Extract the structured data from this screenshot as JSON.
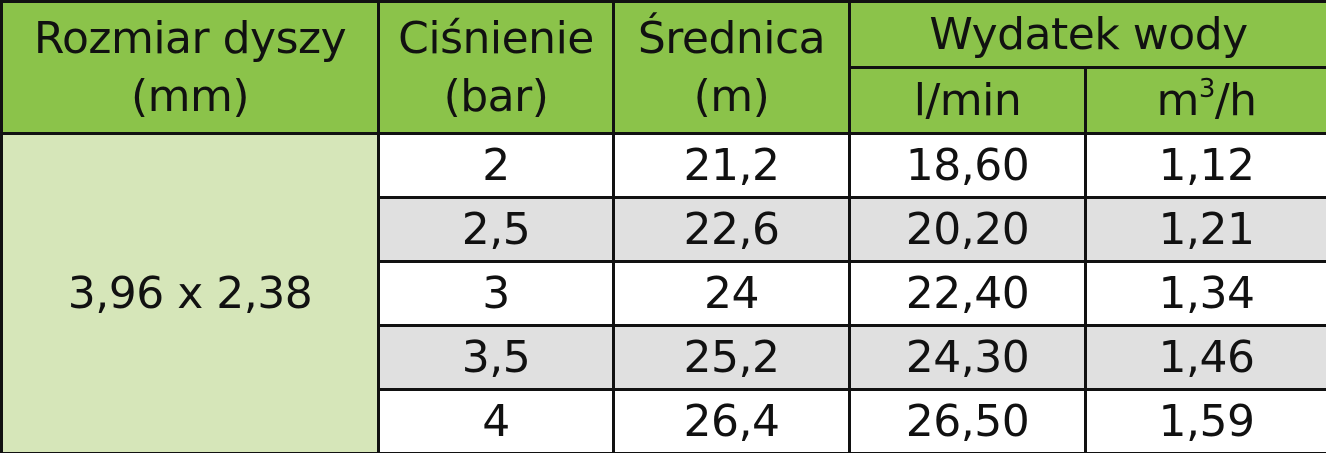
{
  "header": {
    "nozzle_size": {
      "line1": "Rozmiar dyszy",
      "line2": "(mm)"
    },
    "pressure": {
      "line1": "Ciśnienie",
      "line2": "(bar)"
    },
    "diameter": {
      "line1": "Średnica",
      "line2": "(m)"
    },
    "water_output": "Wydatek wody",
    "unit_lmin": "l/min",
    "unit_m3h_base": "m",
    "unit_m3h_sup": "3",
    "unit_m3h_tail": "/h"
  },
  "nozzle_value": "3,96 x 2,38",
  "rows": [
    {
      "pressure": "2",
      "diameter": "21,2",
      "lmin": "18,60",
      "m3h": "1,12"
    },
    {
      "pressure": "2,5",
      "diameter": "22,6",
      "lmin": "20,20",
      "m3h": "1,21"
    },
    {
      "pressure": "3",
      "diameter": "24",
      "lmin": "22,40",
      "m3h": "1,34"
    },
    {
      "pressure": "3,5",
      "diameter": "25,2",
      "lmin": "24,30",
      "m3h": "1,46"
    },
    {
      "pressure": "4",
      "diameter": "26,4",
      "lmin": "26,50",
      "m3h": "1,59"
    }
  ],
  "colors": {
    "header_green": "#8bc34a",
    "nozzle_cell": "#d6e6b9",
    "row_alt_gray": "#e0e0e0",
    "border": "#111111"
  }
}
